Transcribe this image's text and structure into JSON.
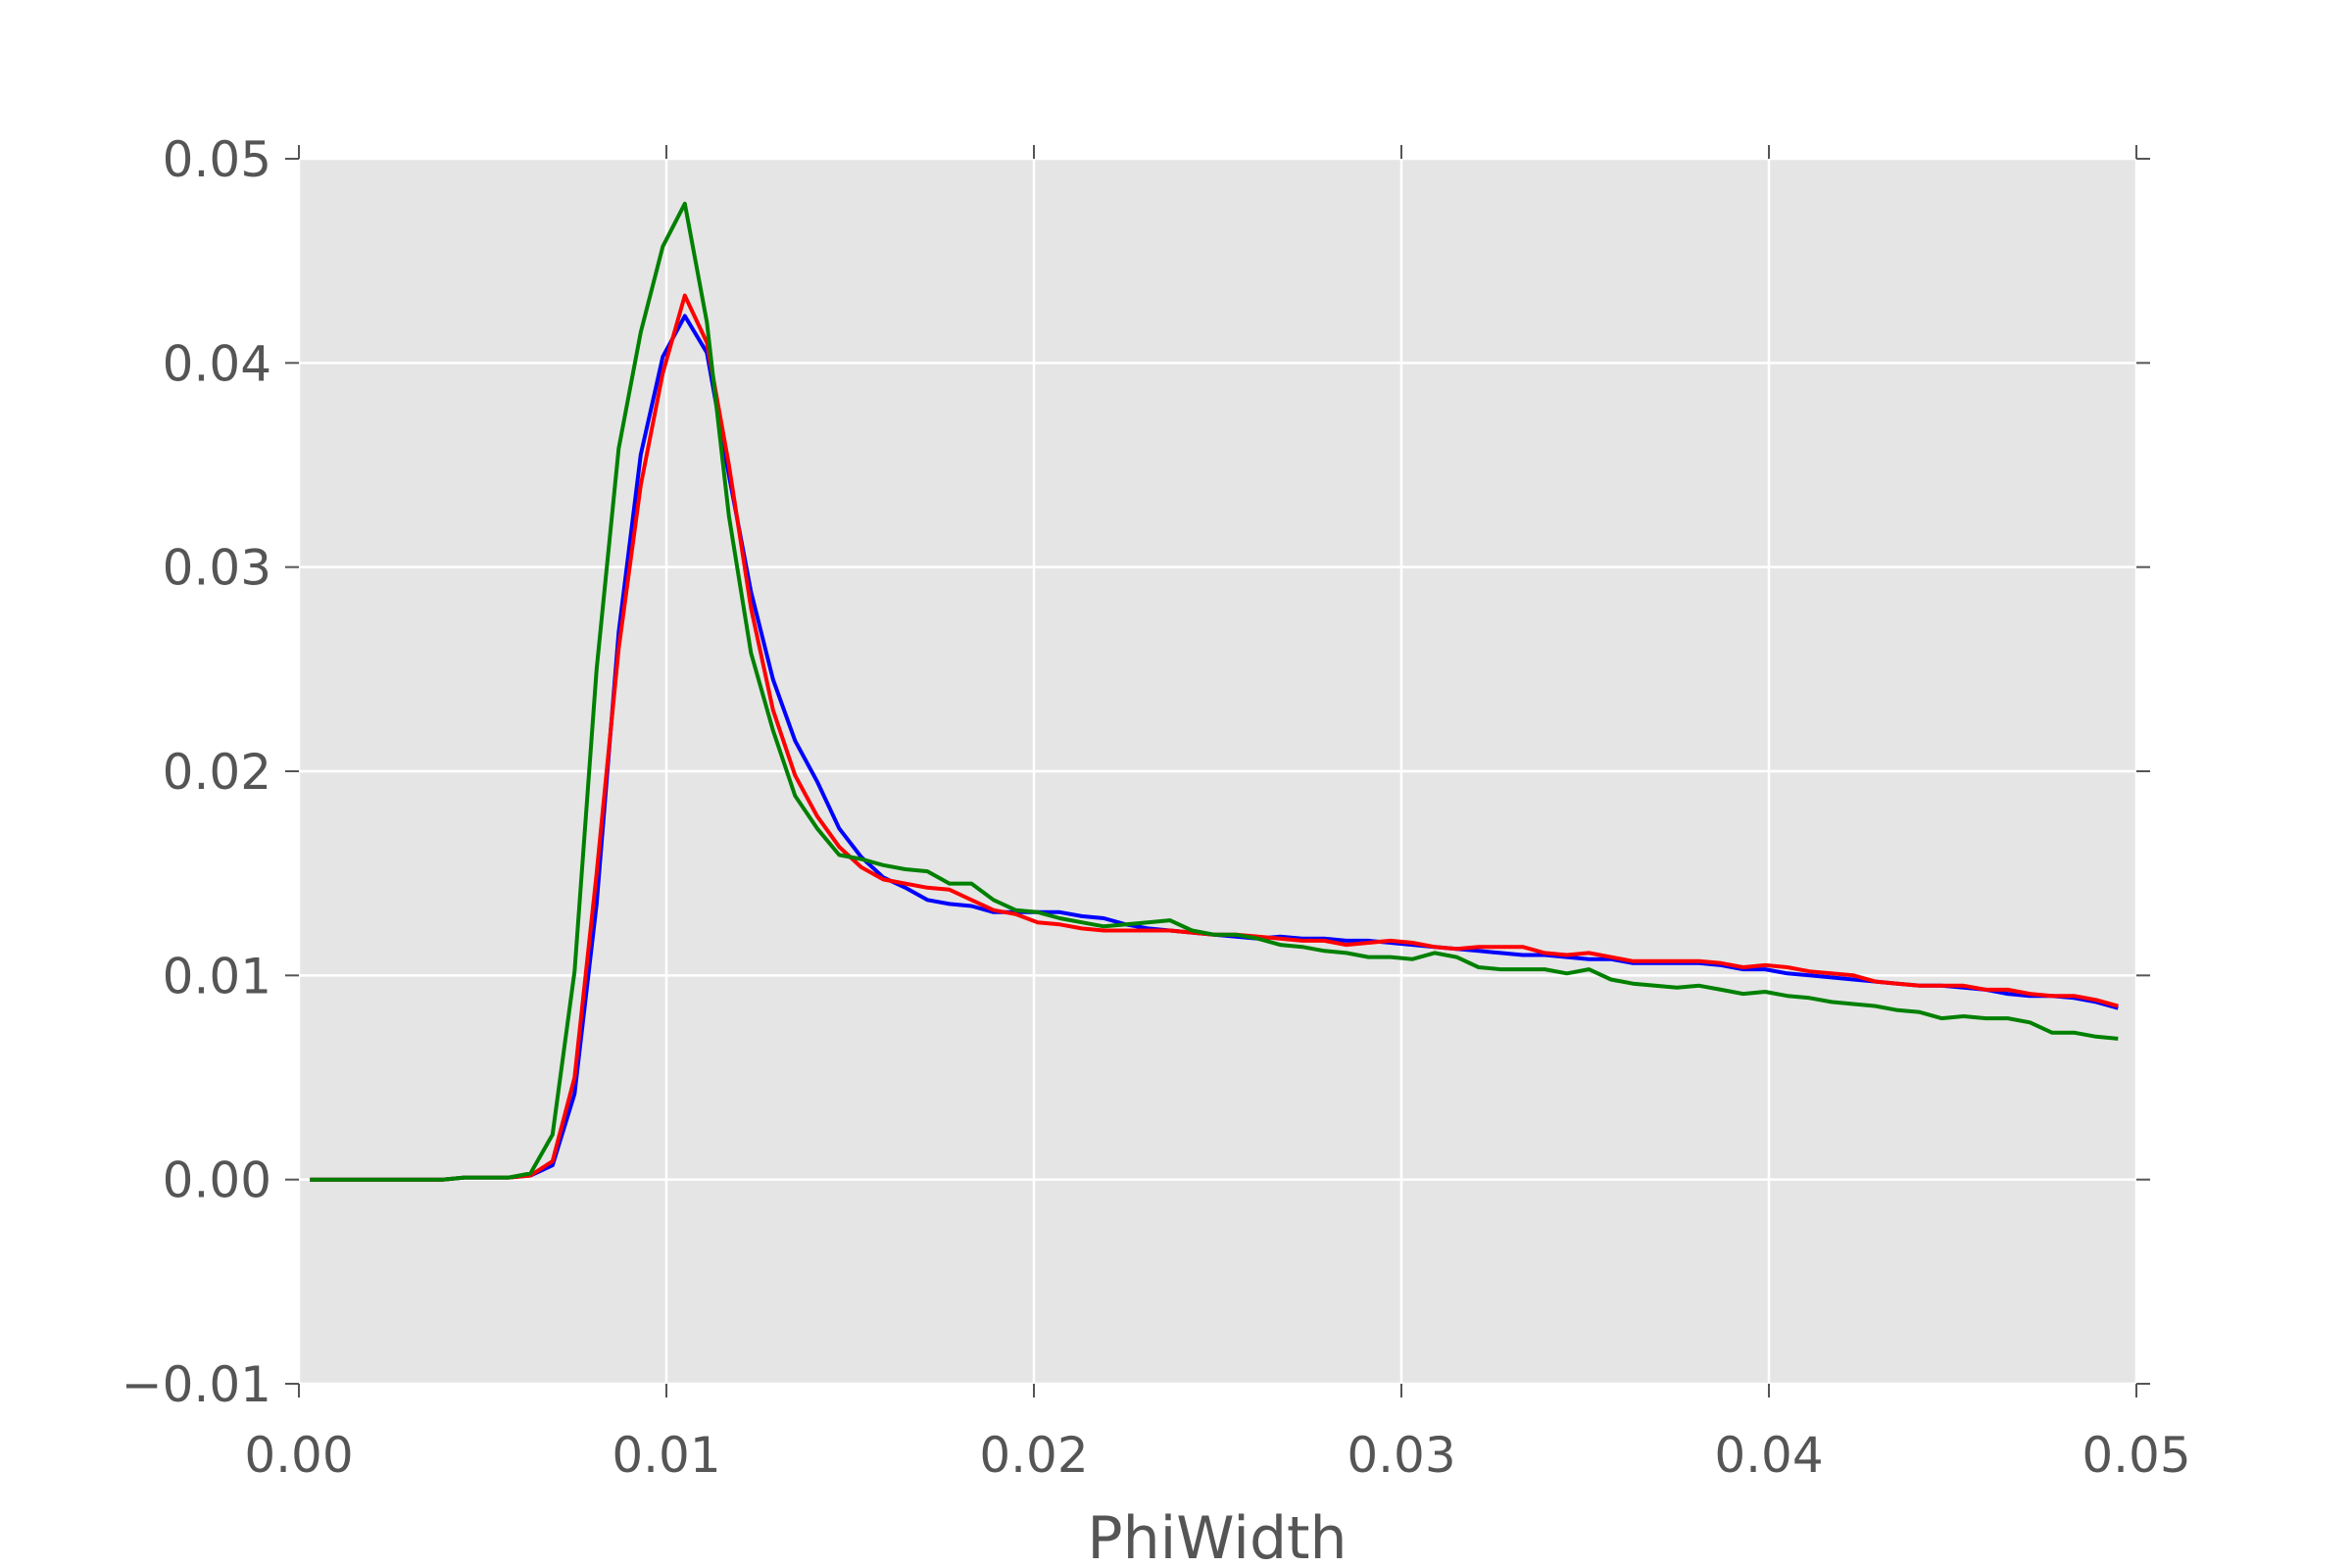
{
  "chart_data": {
    "type": "line",
    "xlabel": "PhiWidth",
    "x": [
      0.0003,
      0.0009,
      0.0015,
      0.0021,
      0.0027,
      0.0033,
      0.0039,
      0.0045,
      0.0051,
      0.0057,
      0.0063,
      0.0069,
      0.0075,
      0.0081,
      0.0087,
      0.0093,
      0.0099,
      0.0105,
      0.0111,
      0.0117,
      0.0123,
      0.0129,
      0.0135,
      0.0141,
      0.0147,
      0.0153,
      0.0159,
      0.0165,
      0.0171,
      0.0177,
      0.0183,
      0.0189,
      0.0195,
      0.0201,
      0.0207,
      0.0213,
      0.0219,
      0.0225,
      0.0231,
      0.0237,
      0.0243,
      0.0249,
      0.0255,
      0.0261,
      0.0267,
      0.0273,
      0.0279,
      0.0285,
      0.0291,
      0.0297,
      0.0303,
      0.0309,
      0.0315,
      0.0321,
      0.0327,
      0.0333,
      0.0339,
      0.0345,
      0.0351,
      0.0357,
      0.0363,
      0.0369,
      0.0375,
      0.0381,
      0.0387,
      0.0393,
      0.0399,
      0.0405,
      0.0411,
      0.0417,
      0.0423,
      0.0429,
      0.0435,
      0.0441,
      0.0447,
      0.0453,
      0.0459,
      0.0465,
      0.0471,
      0.0477,
      0.0483,
      0.0489,
      0.0495
    ],
    "series": [
      {
        "color": "#0000ff",
        "values": [
          0,
          0,
          0,
          0,
          0,
          0,
          0,
          0.0001,
          0.0001,
          0.0001,
          0.0002,
          0.0007,
          0.0042,
          0.0135,
          0.0268,
          0.0355,
          0.0403,
          0.0423,
          0.0405,
          0.0345,
          0.0288,
          0.0245,
          0.0215,
          0.0195,
          0.0172,
          0.0158,
          0.0148,
          0.0143,
          0.0137,
          0.0135,
          0.0134,
          0.0131,
          0.0131,
          0.0131,
          0.0131,
          0.0129,
          0.0128,
          0.0125,
          0.0123,
          0.0122,
          0.0121,
          0.012,
          0.0119,
          0.0118,
          0.0119,
          0.0118,
          0.0118,
          0.0117,
          0.0117,
          0.0116,
          0.0115,
          0.0114,
          0.0113,
          0.0112,
          0.0111,
          0.011,
          0.011,
          0.0109,
          0.0108,
          0.0108,
          0.0106,
          0.0106,
          0.0106,
          0.0106,
          0.0105,
          0.0103,
          0.0103,
          0.0101,
          0.01,
          0.0099,
          0.0098,
          0.0097,
          0.0096,
          0.0095,
          0.0095,
          0.0094,
          0.0093,
          0.0091,
          0.009,
          0.009,
          0.0089,
          0.0087,
          0.0084
        ]
      },
      {
        "color": "#ff0000",
        "values": [
          0,
          0,
          0,
          0,
          0,
          0,
          0,
          0.0001,
          0.0001,
          0.0001,
          0.0002,
          0.0009,
          0.005,
          0.015,
          0.026,
          0.034,
          0.0395,
          0.0433,
          0.041,
          0.035,
          0.028,
          0.023,
          0.0198,
          0.0178,
          0.0163,
          0.0153,
          0.0147,
          0.0145,
          0.0143,
          0.0142,
          0.0137,
          0.0132,
          0.013,
          0.0126,
          0.0125,
          0.0123,
          0.0122,
          0.0122,
          0.0122,
          0.0122,
          0.0121,
          0.012,
          0.012,
          0.0119,
          0.0118,
          0.0117,
          0.0117,
          0.0115,
          0.0116,
          0.0117,
          0.0116,
          0.0114,
          0.0113,
          0.0114,
          0.0114,
          0.0114,
          0.0111,
          0.011,
          0.0111,
          0.0109,
          0.0107,
          0.0107,
          0.0107,
          0.0107,
          0.0106,
          0.0104,
          0.0105,
          0.0104,
          0.0102,
          0.0101,
          0.01,
          0.0097,
          0.0096,
          0.0095,
          0.0095,
          0.0095,
          0.0093,
          0.0093,
          0.0091,
          0.009,
          0.009,
          0.0088,
          0.0085
        ]
      },
      {
        "color": "#008000",
        "values": [
          0,
          0,
          0,
          0,
          0,
          0,
          0,
          0.0001,
          0.0001,
          0.0001,
          0.0003,
          0.0022,
          0.0102,
          0.025,
          0.0358,
          0.0415,
          0.0457,
          0.0478,
          0.042,
          0.0325,
          0.0258,
          0.022,
          0.0188,
          0.0172,
          0.0159,
          0.0157,
          0.0154,
          0.0152,
          0.0151,
          0.0145,
          0.0145,
          0.0137,
          0.0132,
          0.0131,
          0.0128,
          0.0126,
          0.0124,
          0.0125,
          0.0126,
          0.0127,
          0.0122,
          0.012,
          0.012,
          0.0118,
          0.0115,
          0.0114,
          0.0112,
          0.0111,
          0.0109,
          0.0109,
          0.0108,
          0.0111,
          0.0109,
          0.0104,
          0.0103,
          0.0103,
          0.0103,
          0.0101,
          0.0103,
          0.0098,
          0.0096,
          0.0095,
          0.0094,
          0.0095,
          0.0093,
          0.0091,
          0.0092,
          0.009,
          0.0089,
          0.0087,
          0.0086,
          0.0085,
          0.0083,
          0.0082,
          0.0079,
          0.008,
          0.0079,
          0.0079,
          0.0077,
          0.0072,
          0.0072,
          0.007,
          0.0069
        ]
      }
    ],
    "xlim": [
      0,
      0.05
    ],
    "xticks": [
      {
        "value": 0,
        "label": "0.00"
      },
      0.01,
      0.02,
      0.03,
      0.04,
      0.05
    ],
    "ylim": [
      -0.01,
      0.05
    ],
    "yticks": [
      {
        "value": -0.01,
        "label": "−0.01"
      },
      {
        "value": 0,
        "label": "0.00"
      },
      0.01,
      0.02,
      0.03,
      0.04,
      0.05
    ],
    "grid": true
  }
}
